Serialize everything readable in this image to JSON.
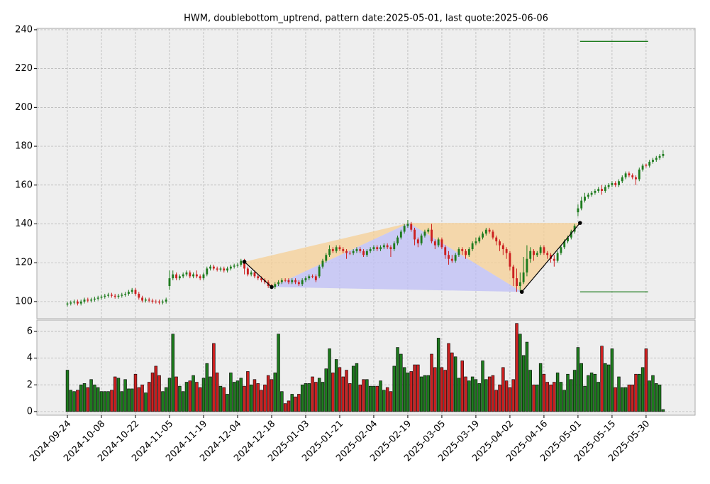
{
  "chart_data": {
    "type": "candlestick",
    "title": "HWM, doublebottom_uptrend, pattern date:2025-05-01, last quote:2025-06-06",
    "xlim": [
      -8.96,
      184.4
    ],
    "xticks": [
      {
        "value": 0,
        "label": "2024-09-24"
      },
      {
        "value": 10,
        "label": "2024-10-08"
      },
      {
        "value": 20,
        "label": "2024-10-22"
      },
      {
        "value": 30,
        "label": "2024-11-05"
      },
      {
        "value": 40,
        "label": "2024-11-19"
      },
      {
        "value": 50,
        "label": "2024-12-04"
      },
      {
        "value": 60,
        "label": "2024-12-18"
      },
      {
        "value": 70,
        "label": "2025-01-03"
      },
      {
        "value": 80,
        "label": "2025-01-21"
      },
      {
        "value": 90,
        "label": "2025-02-04"
      },
      {
        "value": 100,
        "label": "2025-02-19"
      },
      {
        "value": 110,
        "label": "2025-03-05"
      },
      {
        "value": 120,
        "label": "2025-03-19"
      },
      {
        "value": 130,
        "label": "2025-04-02"
      },
      {
        "value": 140,
        "label": "2025-04-16"
      },
      {
        "value": 150,
        "label": "2025-05-01"
      },
      {
        "value": 160,
        "label": "2025-05-15"
      },
      {
        "value": 170,
        "label": "2025-05-30"
      }
    ],
    "ylim": [
      91.2,
      240.7
    ],
    "yticks": [
      100,
      120,
      140,
      160,
      180,
      200,
      220,
      240
    ],
    "y2lim": [
      -0.27,
      6.85
    ],
    "y2ticks": [
      0,
      2,
      4,
      6
    ],
    "grid": true,
    "up_color": "#1e7b1e",
    "down_color": "#cc2020",
    "ohlc": [
      [
        98.5,
        100,
        97.5,
        99
      ],
      [
        99,
        100.5,
        98,
        99.5
      ],
      [
        99.5,
        101,
        98.5,
        100
      ],
      [
        100,
        101,
        98,
        99
      ],
      [
        99,
        101,
        98,
        100
      ],
      [
        100,
        102,
        99,
        101
      ],
      [
        101,
        102,
        99.5,
        100.5
      ],
      [
        100.5,
        102,
        99.5,
        101
      ],
      [
        101,
        102.5,
        100,
        101.5
      ],
      [
        101.5,
        103,
        100.5,
        102
      ],
      [
        102,
        103.5,
        101,
        102.5
      ],
      [
        102.5,
        104,
        101.5,
        103
      ],
      [
        103,
        104.5,
        102,
        103.5
      ],
      [
        103.5,
        104.5,
        102,
        103
      ],
      [
        103,
        104,
        101.5,
        102.5
      ],
      [
        102.5,
        104,
        101.5,
        103
      ],
      [
        103,
        104.5,
        102,
        103.5
      ],
      [
        103.5,
        105,
        102.5,
        104
      ],
      [
        104,
        106,
        103,
        105
      ],
      [
        105,
        107,
        104,
        106
      ],
      [
        106,
        107,
        103,
        104
      ],
      [
        104,
        105,
        101,
        102
      ],
      [
        102,
        103,
        99.5,
        100.5
      ],
      [
        100.5,
        102,
        99.5,
        101
      ],
      [
        101,
        102,
        99.5,
        100.5
      ],
      [
        100.5,
        101.5,
        99,
        100
      ],
      [
        100,
        101,
        99,
        100
      ],
      [
        100,
        101,
        98.5,
        99.5
      ],
      [
        99.5,
        101,
        98.5,
        100
      ],
      [
        100,
        102,
        99,
        101
      ],
      [
        108,
        116,
        106,
        112
      ],
      [
        112,
        116,
        111,
        114
      ],
      [
        114,
        115,
        111,
        112
      ],
      [
        112,
        114,
        111,
        113
      ],
      [
        113,
        115,
        112,
        114
      ],
      [
        114,
        116,
        113,
        115
      ],
      [
        115,
        116,
        112,
        113
      ],
      [
        113,
        115,
        112,
        114
      ],
      [
        114,
        116,
        112,
        113
      ],
      [
        113,
        114,
        111,
        112
      ],
      [
        112,
        115,
        111,
        114
      ],
      [
        114,
        118,
        113,
        117
      ],
      [
        117,
        119,
        116,
        118
      ],
      [
        118,
        119,
        116,
        117
      ],
      [
        117,
        118,
        115.5,
        116.5
      ],
      [
        116.5,
        118,
        115.5,
        117
      ],
      [
        117,
        118,
        115,
        116
      ],
      [
        116,
        118,
        115,
        117
      ],
      [
        117,
        119,
        116,
        118
      ],
      [
        118,
        119.5,
        117,
        118.5
      ],
      [
        118.5,
        120,
        117.5,
        119
      ],
      [
        119,
        122,
        118,
        121
      ],
      [
        121,
        122,
        114,
        117
      ],
      [
        117,
        118,
        113,
        114
      ],
      [
        114,
        116,
        113,
        115
      ],
      [
        115,
        116,
        112,
        113
      ],
      [
        113,
        114,
        111,
        112
      ],
      [
        112,
        113,
        110,
        111
      ],
      [
        111,
        112,
        109,
        110
      ],
      [
        110,
        111,
        107,
        108
      ],
      [
        108,
        109,
        106.5,
        107.5
      ],
      [
        107.5,
        110,
        106.5,
        109
      ],
      [
        109,
        111,
        108,
        110
      ],
      [
        110,
        112,
        109,
        111
      ],
      [
        111,
        112,
        110,
        111
      ],
      [
        111,
        112,
        109,
        110
      ],
      [
        110,
        112,
        109,
        111
      ],
      [
        111,
        112,
        109,
        110
      ],
      [
        110,
        111,
        108,
        109
      ],
      [
        109,
        112,
        108,
        111
      ],
      [
        111,
        113,
        110,
        112
      ],
      [
        112,
        114,
        111,
        113
      ],
      [
        113,
        114,
        112,
        113
      ],
      [
        113,
        114,
        110,
        111
      ],
      [
        113,
        119,
        112,
        118
      ],
      [
        118,
        122,
        117,
        121
      ],
      [
        121,
        125,
        120,
        124
      ],
      [
        124,
        129,
        123,
        127
      ],
      [
        127,
        128,
        125,
        126
      ],
      [
        126,
        129,
        125,
        128
      ],
      [
        128,
        129,
        126,
        127
      ],
      [
        127,
        128,
        125,
        126
      ],
      [
        126,
        127,
        122,
        125
      ],
      [
        125,
        126,
        124,
        125
      ],
      [
        125,
        127,
        124,
        126
      ],
      [
        126,
        128,
        125,
        127
      ],
      [
        127,
        128,
        125,
        126
      ],
      [
        126,
        127,
        123,
        124
      ],
      [
        124,
        127,
        123,
        126
      ],
      [
        126,
        128,
        125,
        127
      ],
      [
        127,
        129,
        126,
        128
      ],
      [
        128,
        129,
        126,
        127
      ],
      [
        127,
        129,
        126,
        128
      ],
      [
        128,
        130,
        127,
        129
      ],
      [
        129,
        130,
        127,
        128
      ],
      [
        128,
        129,
        123,
        127
      ],
      [
        127,
        131,
        126,
        130
      ],
      [
        130,
        134,
        129,
        133
      ],
      [
        133,
        137,
        132,
        136
      ],
      [
        136,
        140,
        135,
        139
      ],
      [
        139,
        142,
        138,
        140
      ],
      [
        140,
        141,
        136,
        137
      ],
      [
        137,
        138,
        129,
        132
      ],
      [
        132,
        133,
        128,
        130
      ],
      [
        130,
        135,
        129,
        134
      ],
      [
        134,
        137,
        133,
        136
      ],
      [
        136,
        138,
        135,
        137
      ],
      [
        137,
        140,
        130,
        131
      ],
      [
        131,
        132,
        127,
        129
      ],
      [
        129,
        133,
        128,
        132
      ],
      [
        132,
        133,
        127,
        128
      ],
      [
        128,
        129,
        122,
        124
      ],
      [
        124,
        126,
        119,
        122
      ],
      [
        122,
        124,
        120,
        121
      ],
      [
        121,
        125,
        120,
        124
      ],
      [
        124,
        128,
        123,
        127
      ],
      [
        127,
        128,
        124,
        126
      ],
      [
        126,
        127,
        122,
        124
      ],
      [
        124,
        128,
        123,
        127
      ],
      [
        127,
        131,
        126,
        130
      ],
      [
        130,
        133,
        129,
        131
      ],
      [
        131,
        134,
        130,
        133
      ],
      [
        133,
        136,
        132,
        135
      ],
      [
        135,
        138,
        134,
        137
      ],
      [
        137,
        138,
        135,
        136
      ],
      [
        136,
        137,
        132,
        133
      ],
      [
        133,
        134,
        129,
        131
      ],
      [
        131,
        132,
        126,
        129
      ],
      [
        129,
        130,
        124,
        127
      ],
      [
        127,
        128,
        122,
        125
      ],
      [
        125,
        126,
        116,
        118
      ],
      [
        118,
        119,
        108,
        112
      ],
      [
        112,
        117,
        105,
        108
      ],
      [
        108,
        115,
        105,
        110
      ],
      [
        110,
        123,
        109,
        115
      ],
      [
        115,
        129,
        113,
        122
      ],
      [
        122,
        128,
        120,
        126
      ],
      [
        126,
        127,
        121,
        124
      ],
      [
        124,
        126,
        123,
        125
      ],
      [
        125,
        129,
        124,
        128
      ],
      [
        128,
        129,
        124,
        125
      ],
      [
        125,
        126,
        122,
        124
      ],
      [
        124,
        125,
        120,
        122
      ],
      [
        122,
        124,
        118,
        121
      ],
      [
        121,
        126,
        120,
        125
      ],
      [
        125,
        129,
        124,
        128
      ],
      [
        128,
        132,
        127,
        131
      ],
      [
        131,
        134,
        130,
        133
      ],
      [
        133,
        137,
        132,
        136
      ],
      [
        136,
        140,
        135,
        139
      ],
      [
        146,
        150,
        144,
        148
      ],
      [
        148,
        154,
        147,
        152
      ],
      [
        152,
        156,
        151,
        154
      ],
      [
        154,
        156,
        153,
        155
      ],
      [
        155,
        157,
        154,
        156
      ],
      [
        156,
        158,
        155,
        157
      ],
      [
        157,
        159,
        156,
        158
      ],
      [
        158,
        160,
        155,
        157
      ],
      [
        157,
        160,
        156,
        159
      ],
      [
        159,
        161,
        158,
        160
      ],
      [
        160,
        162,
        159,
        161
      ],
      [
        161,
        162,
        159,
        160
      ],
      [
        160,
        163,
        159,
        162
      ],
      [
        162,
        165,
        161,
        164
      ],
      [
        164,
        167,
        163,
        166
      ],
      [
        166,
        167,
        164,
        165
      ],
      [
        165,
        166,
        163,
        164
      ],
      [
        164,
        165,
        160,
        163
      ],
      [
        163,
        169,
        162,
        168
      ],
      [
        168,
        171,
        167,
        170
      ],
      [
        170.5,
        171,
        169,
        170
      ],
      [
        170,
        173,
        169,
        172
      ],
      [
        172,
        174,
        171,
        173
      ],
      [
        173,
        175,
        172,
        174
      ],
      [
        174,
        176,
        173,
        175
      ],
      [
        175,
        178,
        174,
        176
      ]
    ],
    "volume": [
      3.1,
      1.6,
      1.5,
      1.6,
      2.0,
      2.1,
      1.8,
      2.4,
      2.0,
      1.8,
      1.5,
      1.5,
      1.5,
      1.6,
      2.6,
      2.5,
      1.5,
      2.4,
      1.7,
      1.7,
      2.8,
      1.8,
      2.0,
      1.4,
      2.2,
      2.9,
      3.4,
      2.7,
      1.5,
      1.8,
      2.5,
      5.8,
      2.6,
      1.9,
      1.5,
      2.2,
      2.3,
      2.7,
      2.2,
      1.8,
      2.5,
      3.6,
      2.6,
      5.1,
      2.9,
      1.9,
      1.8,
      1.3,
      2.9,
      2.2,
      2.3,
      2.5,
      1.9,
      3.0,
      2.0,
      2.4,
      2.1,
      1.6,
      2.0,
      2.7,
      2.4,
      2.9,
      5.8,
      1.5,
      0.6,
      0.8,
      1.3,
      1.1,
      1.3,
      2.0,
      2.1,
      2.1,
      2.6,
      2.2,
      2.5,
      2.2,
      3.2,
      4.7,
      2.9,
      3.9,
      3.3,
      2.6,
      3.1,
      2.1,
      3.4,
      3.6,
      2.0,
      2.4,
      2.4,
      1.9,
      1.9,
      1.9,
      2.3,
      1.6,
      1.8,
      1.5,
      3.4,
      4.8,
      4.3,
      3.3,
      2.9,
      3.0,
      3.5,
      3.5,
      2.6,
      2.7,
      2.7,
      4.3,
      3.3,
      5.5,
      3.3,
      3.1,
      5.1,
      4.4,
      4.1,
      2.5,
      3.8,
      2.6,
      2.3,
      2.6,
      2.4,
      2.1,
      3.8,
      2.4,
      2.6,
      2.7,
      1.6,
      2.0,
      3.3,
      2.3,
      1.8,
      2.4,
      6.6,
      5.8,
      4.2,
      5.2,
      3.1,
      2.0,
      2.0,
      3.6,
      2.8,
      2.2,
      2.0,
      2.2,
      2.9,
      2.2,
      1.6,
      2.8,
      2.4,
      3.1,
      4.8,
      3.6,
      1.9,
      2.7,
      2.9,
      2.8,
      2.2,
      4.9,
      3.6,
      3.5,
      4.7,
      1.8,
      2.6,
      1.8,
      1.8,
      2.0,
      2.0,
      2.8,
      2.8,
      3.3,
      4.7,
      2.3,
      2.7,
      2.1,
      2.0,
      0.15
    ],
    "pattern": {
      "x": [
        52,
        60,
        100.4,
        133.5,
        150.6
      ],
      "y": [
        120.5,
        107.5,
        140.5,
        105,
        140.5
      ]
    },
    "levels": {
      "x": [
        150.6,
        170.6
      ],
      "values": [
        234,
        105
      ],
      "color": "#1e7b1e"
    }
  }
}
